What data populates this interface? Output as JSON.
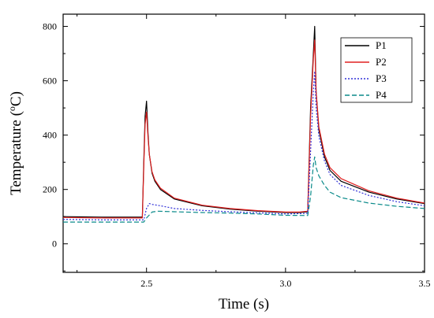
{
  "chart_data": {
    "type": "line",
    "title": "",
    "xlabel": "Time (s)",
    "ylabel": "Temperature (",
    "ylabel_sup": "o",
    "ylabel_unit": "C)",
    "xlim": [
      2.2,
      3.5
    ],
    "ylim": [
      -105,
      845
    ],
    "xticks": [
      2.5,
      3.0,
      3.5
    ],
    "xtick_labels": [
      "2.5",
      "3.0",
      "3.5"
    ],
    "yticks": [
      0,
      200,
      400,
      600,
      800
    ],
    "ytick_labels": [
      "0",
      "200",
      "400",
      "600",
      "800"
    ],
    "grid": false,
    "legend_position": "top-right",
    "series": [
      {
        "name": "P1",
        "color": "#000000",
        "dash": "solid",
        "x": [
          2.2,
          2.35,
          2.485,
          2.49,
          2.495,
          2.5,
          2.505,
          2.51,
          2.52,
          2.53,
          2.55,
          2.6,
          2.7,
          2.8,
          2.9,
          3.0,
          3.05,
          3.08,
          3.09,
          3.1,
          3.105,
          3.11,
          3.12,
          3.14,
          3.16,
          3.2,
          3.3,
          3.4,
          3.5
        ],
        "y": [
          100,
          98,
          98,
          300,
          470,
          525,
          410,
          330,
          260,
          230,
          200,
          165,
          140,
          128,
          120,
          115,
          115,
          118,
          500,
          700,
          800,
          560,
          420,
          320,
          270,
          230,
          190,
          165,
          148
        ]
      },
      {
        "name": "P2",
        "color": "#e02020",
        "dash": "solid",
        "x": [
          2.2,
          2.35,
          2.485,
          2.49,
          2.495,
          2.5,
          2.505,
          2.51,
          2.52,
          2.53,
          2.55,
          2.6,
          2.7,
          2.8,
          2.9,
          3.0,
          3.05,
          3.08,
          3.09,
          3.1,
          3.105,
          3.11,
          3.12,
          3.14,
          3.16,
          3.2,
          3.3,
          3.4,
          3.5
        ],
        "y": [
          97,
          95,
          95,
          280,
          440,
          485,
          395,
          330,
          265,
          235,
          205,
          168,
          142,
          130,
          122,
          117,
          117,
          120,
          470,
          680,
          750,
          560,
          430,
          330,
          280,
          240,
          195,
          168,
          150
        ]
      },
      {
        "name": "P3",
        "color": "#3030d8",
        "dash": "2,2",
        "x": [
          2.2,
          2.35,
          2.49,
          2.5,
          2.51,
          2.52,
          2.55,
          2.6,
          2.7,
          2.8,
          2.9,
          3.0,
          3.08,
          3.09,
          3.1,
          3.105,
          3.11,
          3.12,
          3.14,
          3.16,
          3.2,
          3.3,
          3.4,
          3.5
        ],
        "y": [
          90,
          88,
          88,
          130,
          148,
          145,
          140,
          130,
          123,
          118,
          114,
          110,
          112,
          340,
          560,
          635,
          500,
          395,
          305,
          255,
          215,
          178,
          155,
          140
        ]
      },
      {
        "name": "P4",
        "color": "#0a8a8a",
        "dash": "6,3",
        "x": [
          2.2,
          2.35,
          2.49,
          2.5,
          2.52,
          2.54,
          2.6,
          2.7,
          2.8,
          2.9,
          3.0,
          3.08,
          3.09,
          3.1,
          3.105,
          3.11,
          3.12,
          3.14,
          3.16,
          3.2,
          3.3,
          3.4,
          3.5
        ],
        "y": [
          80,
          80,
          80,
          95,
          117,
          120,
          118,
          115,
          113,
          110,
          105,
          104,
          175,
          290,
          320,
          280,
          250,
          215,
          190,
          170,
          150,
          138,
          130
        ]
      }
    ]
  }
}
